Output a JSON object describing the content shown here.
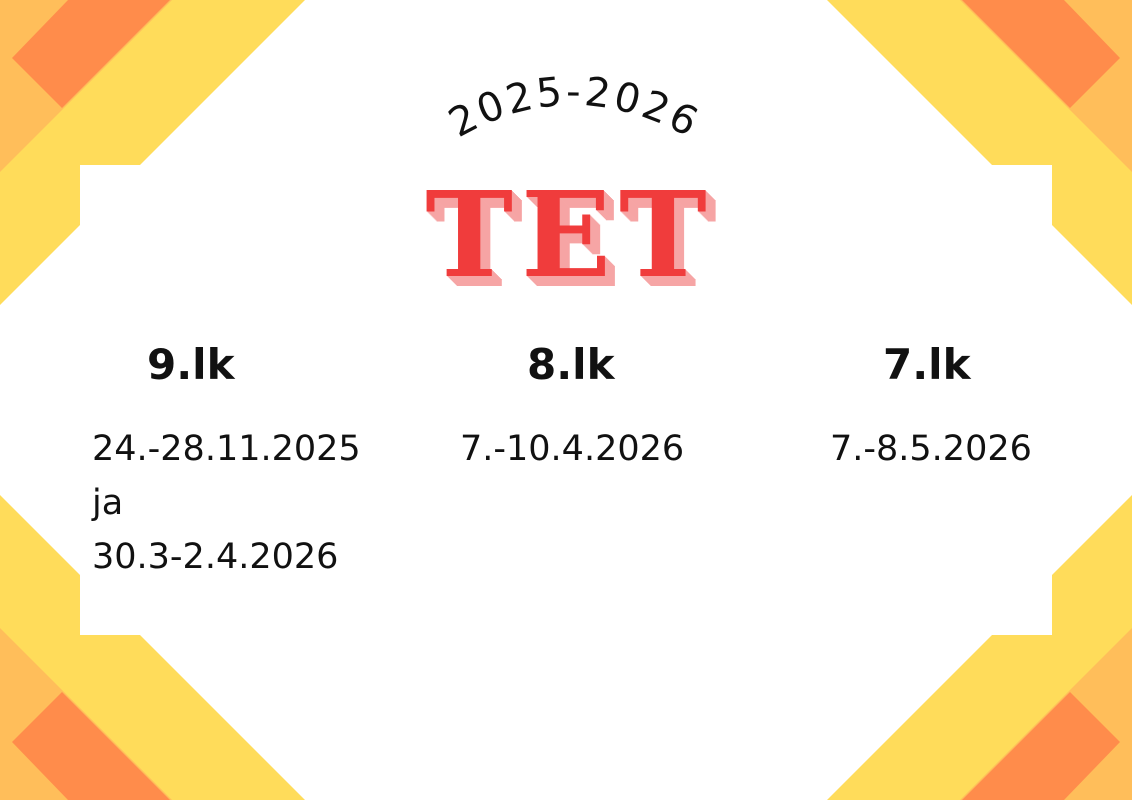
{
  "colors": {
    "yellow": "#FFDC5A",
    "light_orange": "#FFBE5A",
    "orange": "#FF8C4B",
    "title_red": "#F03C3C"
  },
  "header": {
    "year": "2025-2026",
    "title": "TET"
  },
  "columns": [
    {
      "grade": "9.lk",
      "dates": [
        "24.-28.11.2025",
        "ja",
        "30.3-2.4.2026"
      ]
    },
    {
      "grade": "8.lk",
      "dates": [
        "7.-10.4.2026"
      ]
    },
    {
      "grade": "7.lk",
      "dates": [
        "7.-8.5.2026"
      ]
    }
  ]
}
